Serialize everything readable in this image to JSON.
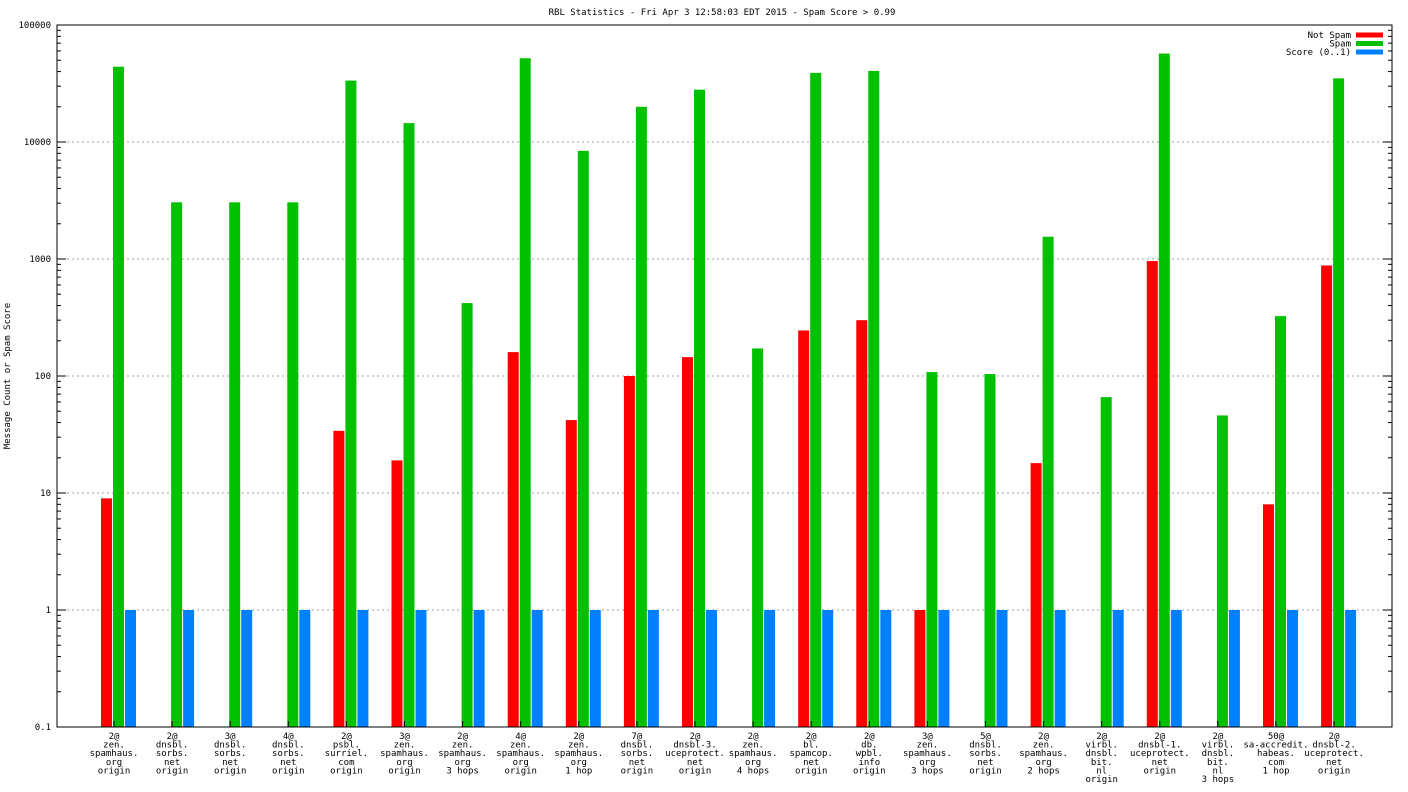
{
  "chart_data": {
    "type": "bar",
    "title": "RBL Statistics - Fri Apr  3 12:58:03 EDT 2015 - Spam Score > 0.99",
    "xlabel": "",
    "ylabel": "Message Count or Spam Score",
    "yscale": "log",
    "ylim": [
      0.1,
      100000
    ],
    "yticks": [
      "0.1",
      "1",
      "10",
      "100",
      "1000",
      "10000",
      "100000"
    ],
    "grid": true,
    "legend_position": "top-right",
    "categories": [
      [
        "2@",
        "zen.",
        "spamhaus.",
        "org",
        "origin"
      ],
      [
        "2@",
        "dnsbl.",
        "sorbs.",
        "net",
        "origin"
      ],
      [
        "3@",
        "dnsbl.",
        "sorbs.",
        "net",
        "origin"
      ],
      [
        "4@",
        "dnsbl.",
        "sorbs.",
        "net",
        "origin"
      ],
      [
        "2@",
        "psbl.",
        "surriel.",
        "com",
        "origin"
      ],
      [
        "3@",
        "zen.",
        "spamhaus.",
        "org",
        "origin"
      ],
      [
        "2@",
        "zen.",
        "spamhaus.",
        "org",
        "3 hops"
      ],
      [
        "4@",
        "zen.",
        "spamhaus.",
        "org",
        "origin"
      ],
      [
        "2@",
        "zen.",
        "spamhaus.",
        "org",
        "1 hop"
      ],
      [
        "7@",
        "dnsbl.",
        "sorbs.",
        "net",
        "origin"
      ],
      [
        "2@",
        "dnsbl-3.",
        "uceprotect.",
        "net",
        "origin"
      ],
      [
        "2@",
        "zen.",
        "spamhaus.",
        "org",
        "4 hops"
      ],
      [
        "2@",
        "bl.",
        "spamcop.",
        "net",
        "origin"
      ],
      [
        "2@",
        "db.",
        "wpbl.",
        "info",
        "origin"
      ],
      [
        "3@",
        "zen.",
        "spamhaus.",
        "org",
        "3 hops"
      ],
      [
        "5@",
        "dnsbl.",
        "sorbs.",
        "net",
        "origin"
      ],
      [
        "2@",
        "zen.",
        "spamhaus.",
        "org",
        "2 hops"
      ],
      [
        "2@",
        "virbl.",
        "dnsbl.",
        "bit.",
        "nl",
        "origin"
      ],
      [
        "2@",
        "dnsbl-1.",
        "uceprotect.",
        "net",
        "origin"
      ],
      [
        "2@",
        "virbl.",
        "dnsbl.",
        "bit.",
        "nl",
        "3 hops"
      ],
      [
        "50@",
        "sa-accredit.",
        "habeas.",
        "com",
        "1 hop"
      ],
      [
        "2@",
        "dnsbl-2.",
        "uceprotect.",
        "net",
        "origin"
      ]
    ],
    "series": [
      {
        "name": "Not Spam",
        "color": "#ff0000",
        "values": [
          9,
          null,
          null,
          null,
          34,
          19,
          null,
          160,
          42,
          100,
          145,
          null,
          245,
          300,
          1,
          null,
          18,
          null,
          960,
          null,
          8,
          880
        ]
      },
      {
        "name": "Spam",
        "color": "#00c000",
        "values": [
          44000,
          3050,
          3050,
          3050,
          33500,
          14500,
          420,
          52000,
          8400,
          20000,
          28000,
          172,
          39000,
          40500,
          108,
          104,
          1550,
          66,
          57000,
          46,
          325,
          35000
        ]
      },
      {
        "name": "Score (0..1)",
        "color": "#0080ff",
        "values": [
          1,
          1,
          1,
          1,
          1,
          1,
          1,
          1,
          1,
          1,
          1,
          1,
          1,
          1,
          1,
          1,
          1,
          1,
          1,
          1,
          1,
          1
        ]
      }
    ]
  }
}
